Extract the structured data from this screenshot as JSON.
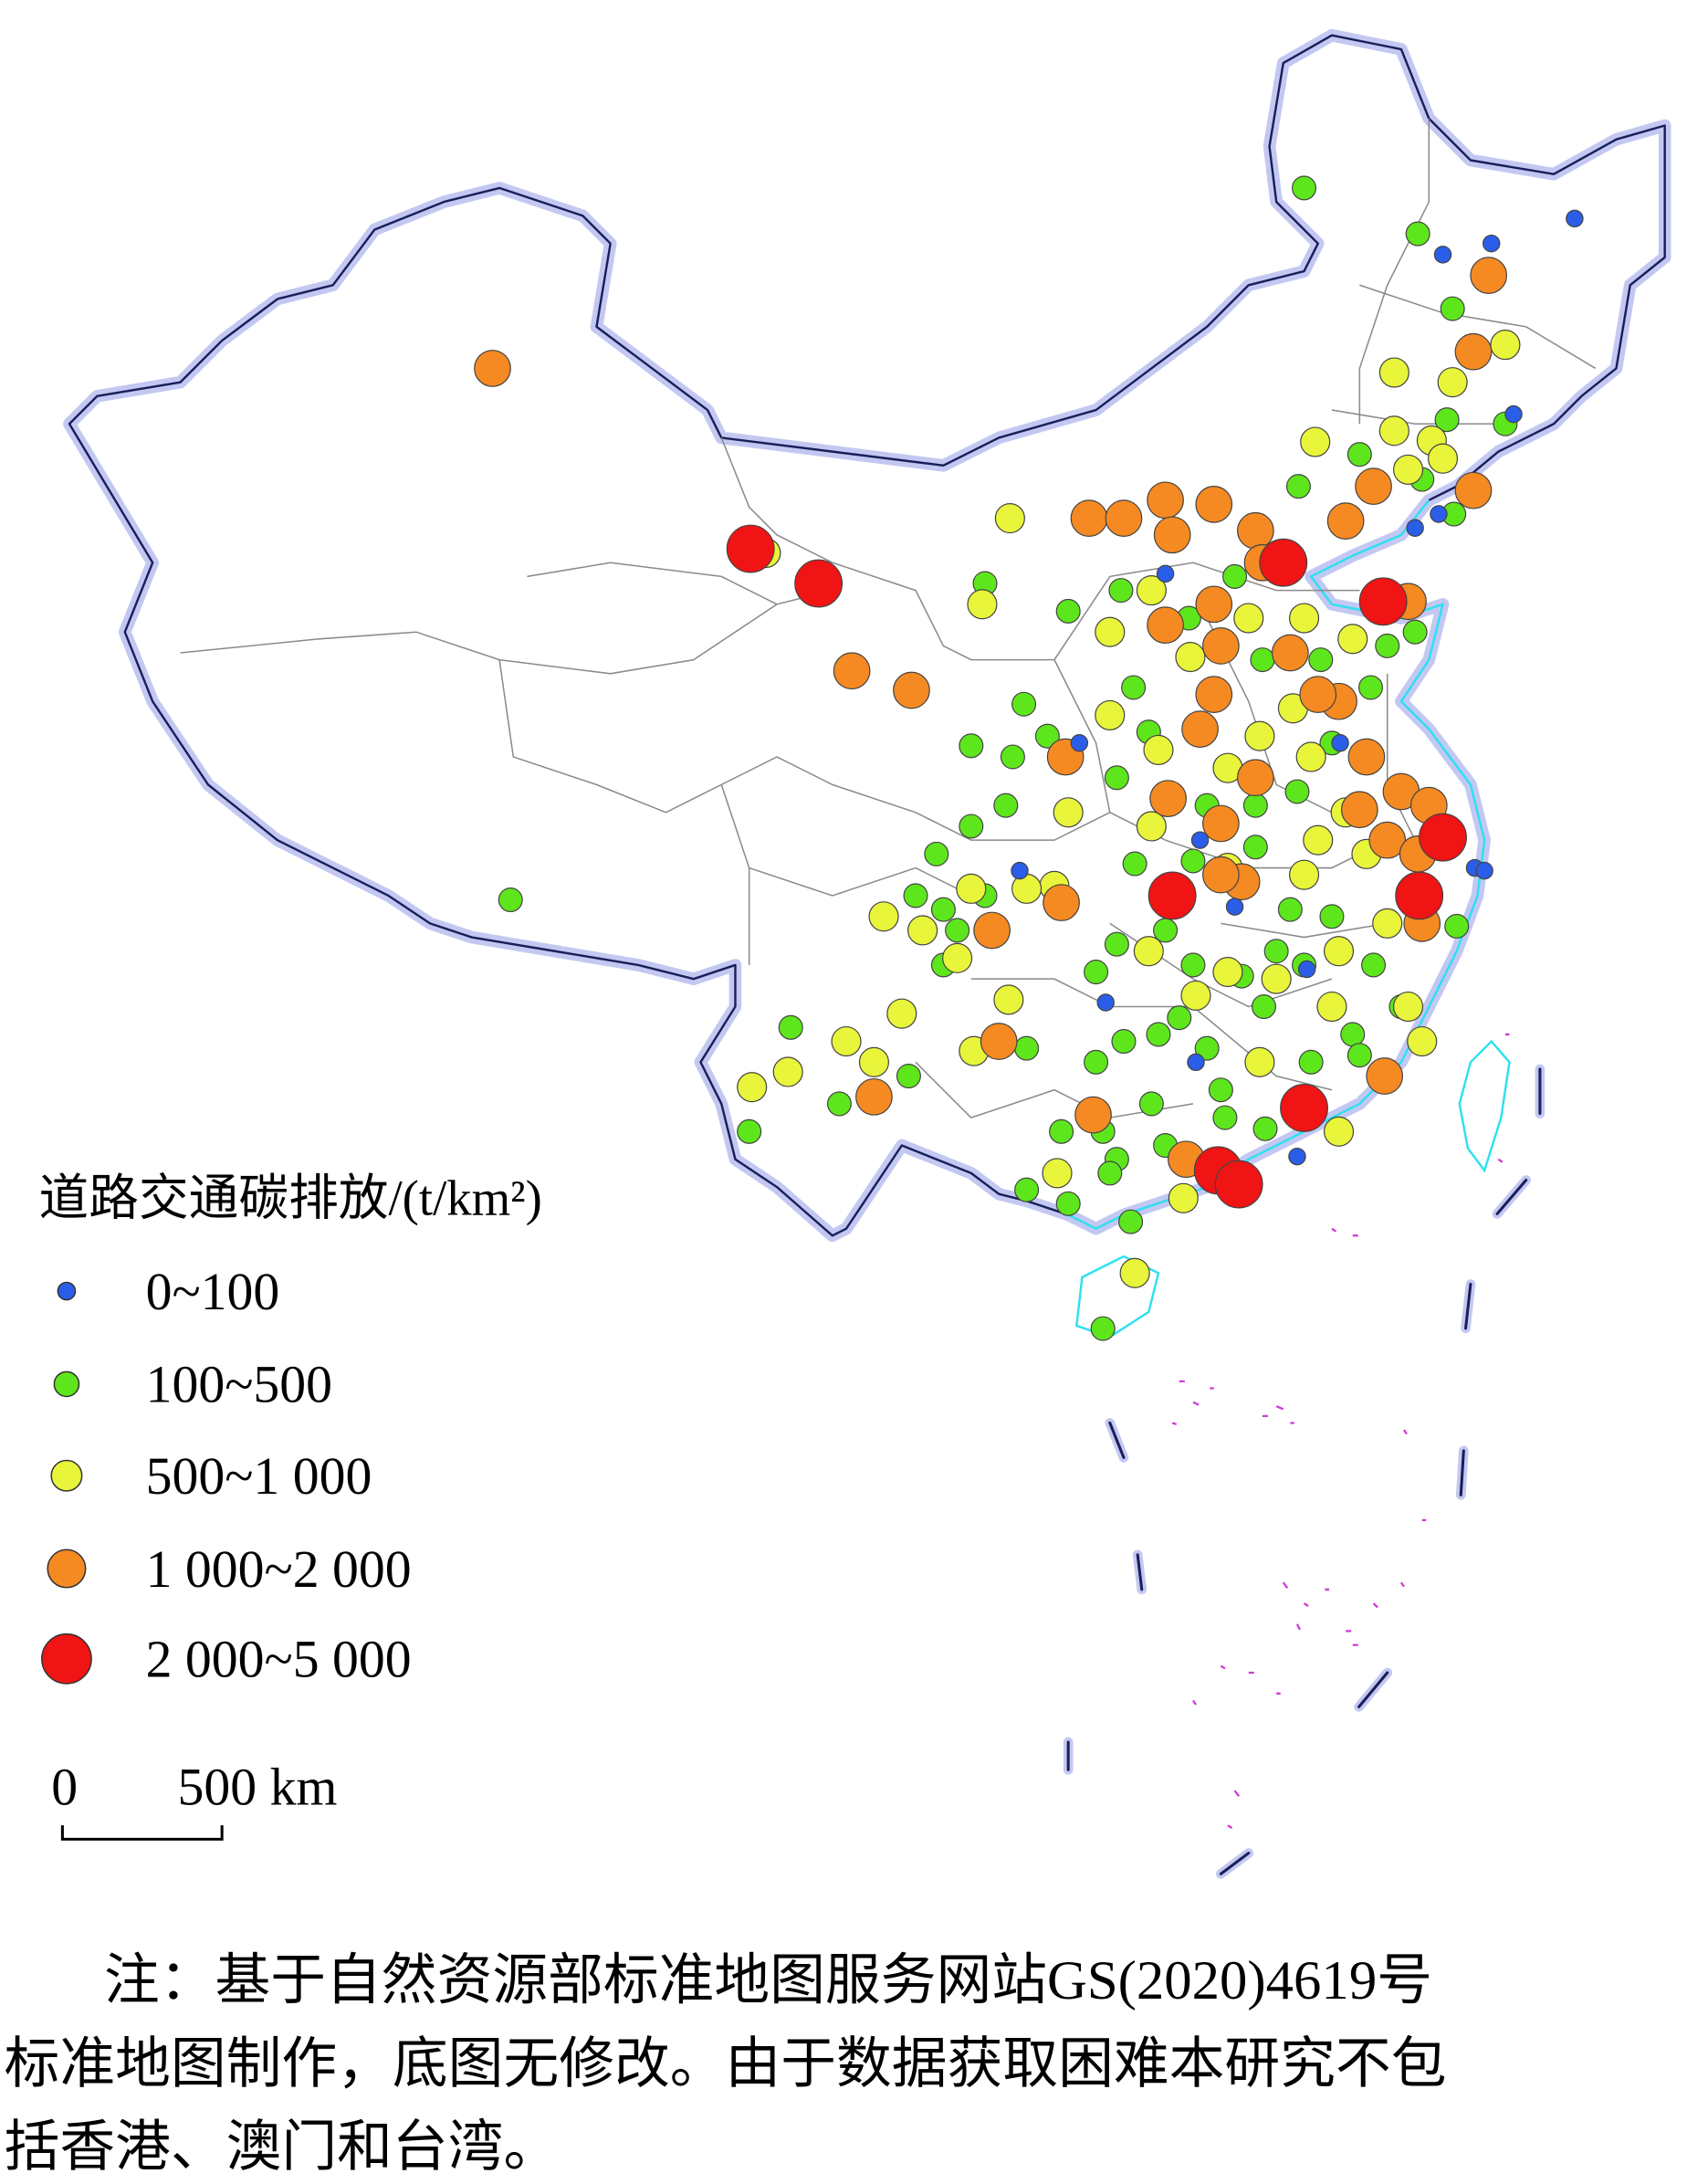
{
  "legend": {
    "title": "道路交通碳排放/(t/km²)",
    "items": [
      {
        "label": "0~100",
        "color": "#2a5ee8"
      },
      {
        "label": "100~500",
        "color": "#5ee61c"
      },
      {
        "label": "500~1 000",
        "color": "#e8f53a"
      },
      {
        "label": "1 000~2 000",
        "color": "#f58a22"
      },
      {
        "label": "2 000~5 000",
        "color": "#f01414"
      }
    ]
  },
  "scale_bar": {
    "start": "0",
    "end": "500 km"
  },
  "note": {
    "lines": [
      "注：基于自然资源部标准地图服务网站GS(2020)4619号",
      "标准地图制作，底图无修改。由于数据获取困难本研究不包",
      "括香港、澳门和台湾。"
    ]
  }
}
